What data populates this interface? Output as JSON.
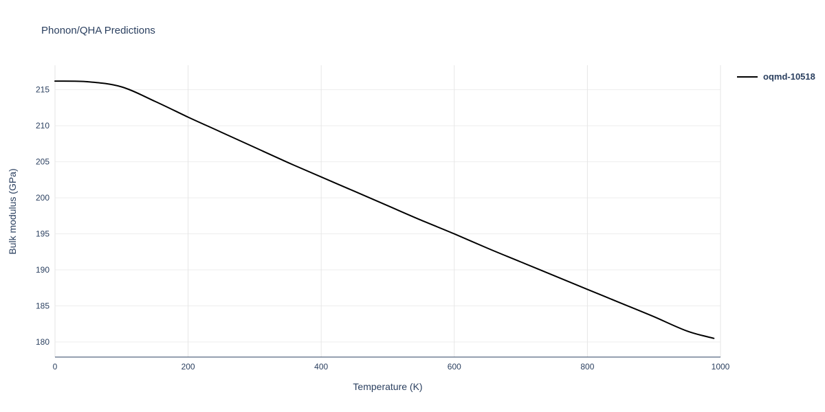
{
  "title": "Phonon/QHA Predictions",
  "colors": {
    "title": "#2a3f5f",
    "axis_text": "#2a3f5f",
    "axis_line": "#2a3f5f",
    "grid": "#e6e6e6",
    "line": "#000000",
    "background": "#ffffff"
  },
  "legend": {
    "position": "top-right",
    "label": "oqmd-10518"
  },
  "chart_data": {
    "type": "line",
    "title": "Phonon/QHA Predictions",
    "xlabel": "Temperature (K)",
    "ylabel": "Bulk modulus (GPa)",
    "xlim": [
      0,
      1000
    ],
    "ylim": [
      177.9,
      218.4
    ],
    "x_ticks": [
      0,
      200,
      400,
      600,
      800,
      1000
    ],
    "y_ticks": [
      180,
      185,
      190,
      195,
      200,
      205,
      210,
      215
    ],
    "grid": true,
    "legend_position": "top-right",
    "series": [
      {
        "name": "oqmd-10518",
        "color": "#000000",
        "x": [
          0,
          50,
          100,
          150,
          200,
          250,
          300,
          350,
          400,
          450,
          500,
          550,
          600,
          650,
          700,
          750,
          800,
          850,
          900,
          950,
          990
        ],
        "y": [
          216.2,
          216.1,
          215.4,
          213.4,
          211.2,
          209.1,
          207.0,
          204.9,
          202.9,
          200.9,
          198.9,
          196.9,
          195.0,
          193.0,
          191.1,
          189.2,
          187.3,
          185.4,
          183.5,
          181.5,
          180.5
        ]
      }
    ]
  }
}
